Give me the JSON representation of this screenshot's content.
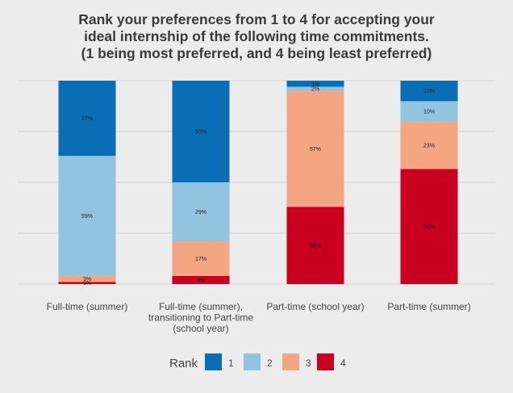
{
  "chart_data": {
    "type": "bar",
    "stacked": true,
    "title": [
      "Rank your preferences from 1 to 4 for accepting your",
      "ideal internship of the following time commitments.",
      "(1 being most preferred, and 4 being least preferred)"
    ],
    "categories": [
      [
        "Full-time (summer)"
      ],
      [
        "Full-time (summer),",
        "transitioning to Part-time",
        "(school year)"
      ],
      [
        "Part-time (school year)"
      ],
      [
        "Part-time (summer)"
      ]
    ],
    "series": [
      {
        "name": "1",
        "color": "#0a6eb4",
        "values": [
          37,
          50,
          3,
          10
        ],
        "labels": [
          "37%",
          "50%",
          "3%",
          "10%"
        ]
      },
      {
        "name": "2",
        "color": "#93c4df",
        "values": [
          59,
          29,
          2,
          10
        ],
        "labels": [
          "59%",
          "29%",
          "2%",
          "10%"
        ]
      },
      {
        "name": "3",
        "color": "#f4a582",
        "values": [
          3,
          17,
          57,
          23
        ],
        "labels": [
          "3%",
          "17%",
          "57%",
          "23%"
        ]
      },
      {
        "name": "4",
        "color": "#ca0020",
        "values": [
          1,
          4,
          38,
          56
        ],
        "labels": [
          "1%",
          "4%",
          "38%",
          "56%"
        ]
      }
    ],
    "ylim": [
      0,
      100
    ],
    "grid": true,
    "legend": {
      "title": "Rank",
      "position": "bottom"
    },
    "xlabel": "",
    "ylabel": ""
  }
}
